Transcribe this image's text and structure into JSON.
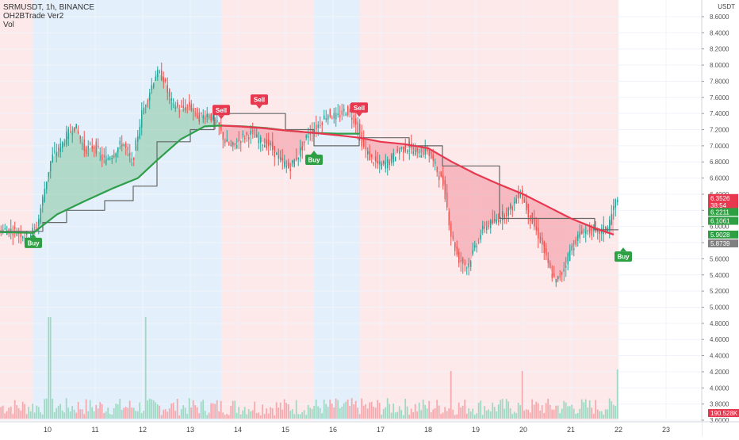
{
  "header": {
    "symbol_line": "SRMUSDT, 1h, BINANCE",
    "indicator": "OH2BTrade Ver2",
    "volume": "Vol"
  },
  "price_axis": {
    "currency": "USDT",
    "ticks": [
      "8.6000",
      "8.4000",
      "8.2000",
      "8.0000",
      "7.8000",
      "7.6000",
      "7.4000",
      "7.2000",
      "7.0000",
      "6.8000",
      "6.6000",
      "6.4000",
      "6.2000",
      "6.0000",
      "5.8000",
      "5.6000",
      "5.4000",
      "5.2000",
      "5.0000",
      "4.8000",
      "4.6000",
      "4.4000",
      "4.2000",
      "4.0000",
      "3.8000",
      "3.6000"
    ],
    "tick_values": [
      8.6,
      8.4,
      8.2,
      8.0,
      7.8,
      7.6,
      7.4,
      7.2,
      7.0,
      6.8,
      6.6,
      6.4,
      6.2,
      6.0,
      5.8,
      5.6,
      5.4,
      5.2,
      5.0,
      4.8,
      4.6,
      4.4,
      4.2,
      4.0,
      3.8,
      3.6
    ]
  },
  "time_axis": {
    "labels": [
      "10",
      "11",
      "12",
      "13",
      "14",
      "15",
      "16",
      "17",
      "18",
      "19",
      "20",
      "21",
      "22",
      "23"
    ],
    "days": [
      10,
      11,
      12,
      13,
      14,
      15,
      16,
      17,
      18,
      19,
      20,
      21,
      22,
      23
    ]
  },
  "price_badges": [
    {
      "label": "6.3526",
      "value": 6.3526,
      "color": "#e8384f"
    },
    {
      "label": "38:54",
      "value": 6.26,
      "color": "#e8384f"
    },
    {
      "label": "6.2211",
      "value": 6.18,
      "color": "#2ea043"
    },
    {
      "label": "6.1061",
      "value": 6.07,
      "color": "#2ea043"
    },
    {
      "label": "5.9028",
      "value": 5.9,
      "color": "#2ea043"
    },
    {
      "label": "5.8739",
      "value": 5.79,
      "color": "#808080"
    }
  ],
  "volume_badge": {
    "label": "190.528K",
    "color": "#e8384f"
  },
  "signals": [
    {
      "label": "Buy",
      "type": "buy",
      "x": 9.7,
      "y": 5.92
    },
    {
      "label": "Sell",
      "type": "sell",
      "x": 13.65,
      "y": 7.32
    },
    {
      "label": "Sell",
      "type": "sell",
      "x": 14.45,
      "y": 7.45
    },
    {
      "label": "Buy",
      "type": "buy",
      "x": 15.6,
      "y": 6.95
    },
    {
      "label": "Sell",
      "type": "sell",
      "x": 16.55,
      "y": 7.35
    },
    {
      "label": "Buy",
      "type": "buy",
      "x": 22.1,
      "y": 5.75
    }
  ],
  "chart_data": {
    "type": "candlestick",
    "title": "SRMUSDT, 1h, BINANCE",
    "xlabel": "",
    "ylabel": "",
    "x_range": [
      9.0,
      23.75
    ],
    "ylim": [
      3.5,
      8.8
    ],
    "background_zones": [
      {
        "from": 9.0,
        "to": 9.7,
        "trend": "bearish"
      },
      {
        "from": 9.7,
        "to": 13.65,
        "trend": "bullish"
      },
      {
        "from": 13.65,
        "to": 15.6,
        "trend": "bearish"
      },
      {
        "from": 15.6,
        "to": 16.55,
        "trend": "bullish"
      },
      {
        "from": 16.55,
        "to": 22.0,
        "trend": "bearish"
      }
    ],
    "close_path": [
      [
        9.0,
        5.96
      ],
      [
        9.3,
        5.95
      ],
      [
        9.6,
        5.88
      ],
      [
        9.8,
        6.0
      ],
      [
        9.95,
        6.45
      ],
      [
        10.1,
        6.85
      ],
      [
        10.3,
        7.0
      ],
      [
        10.45,
        7.15
      ],
      [
        10.6,
        7.25
      ],
      [
        10.8,
        6.95
      ],
      [
        11.0,
        7.0
      ],
      [
        11.2,
        6.82
      ],
      [
        11.4,
        6.9
      ],
      [
        11.6,
        7.05
      ],
      [
        11.8,
        6.78
      ],
      [
        12.0,
        7.4
      ],
      [
        12.15,
        7.65
      ],
      [
        12.3,
        7.9
      ],
      [
        12.45,
        7.85
      ],
      [
        12.6,
        7.55
      ],
      [
        12.8,
        7.45
      ],
      [
        13.0,
        7.5
      ],
      [
        13.2,
        7.35
      ],
      [
        13.4,
        7.4
      ],
      [
        13.6,
        7.25
      ],
      [
        13.75,
        7.05
      ],
      [
        13.9,
        6.98
      ],
      [
        14.1,
        7.1
      ],
      [
        14.3,
        7.15
      ],
      [
        14.5,
        7.05
      ],
      [
        14.7,
        7.0
      ],
      [
        14.9,
        6.82
      ],
      [
        15.1,
        6.72
      ],
      [
        15.3,
        6.9
      ],
      [
        15.5,
        7.15
      ],
      [
        15.7,
        7.25
      ],
      [
        15.9,
        7.4
      ],
      [
        16.1,
        7.35
      ],
      [
        16.3,
        7.45
      ],
      [
        16.5,
        7.3
      ],
      [
        16.65,
        7.0
      ],
      [
        16.8,
        6.85
      ],
      [
        17.0,
        6.75
      ],
      [
        17.2,
        6.8
      ],
      [
        17.4,
        6.95
      ],
      [
        17.6,
        6.98
      ],
      [
        17.8,
        6.9
      ],
      [
        18.0,
        6.95
      ],
      [
        18.2,
        6.7
      ],
      [
        18.35,
        6.5
      ],
      [
        18.5,
        5.9
      ],
      [
        18.65,
        5.6
      ],
      [
        18.85,
        5.5
      ],
      [
        19.0,
        5.75
      ],
      [
        19.2,
        6.0
      ],
      [
        19.4,
        6.05
      ],
      [
        19.6,
        6.15
      ],
      [
        19.8,
        6.25
      ],
      [
        19.95,
        6.45
      ],
      [
        20.1,
        6.2
      ],
      [
        20.25,
        6.0
      ],
      [
        20.4,
        5.8
      ],
      [
        20.55,
        5.5
      ],
      [
        20.7,
        5.3
      ],
      [
        20.85,
        5.45
      ],
      [
        21.0,
        5.7
      ],
      [
        21.2,
        5.9
      ],
      [
        21.4,
        5.95
      ],
      [
        21.6,
        5.92
      ],
      [
        21.8,
        6.0
      ],
      [
        21.95,
        6.3
      ]
    ],
    "overlays": [
      {
        "role": "fast moving average",
        "color": "#2e9e4a",
        "points": [
          [
            9.0,
            5.93
          ],
          [
            9.7,
            5.92
          ],
          [
            10.2,
            6.15
          ],
          [
            10.8,
            6.32
          ],
          [
            11.4,
            6.48
          ],
          [
            11.9,
            6.6
          ],
          [
            12.3,
            6.82
          ],
          [
            12.8,
            7.08
          ],
          [
            13.3,
            7.24
          ],
          [
            13.65,
            7.25
          ],
          [
            14.1,
            7.24
          ],
          [
            14.6,
            7.22
          ],
          [
            15.0,
            7.19
          ],
          [
            15.6,
            7.16
          ],
          [
            16.1,
            7.15
          ],
          [
            16.55,
            7.15
          ]
        ]
      },
      {
        "role": "slow moving average",
        "color": "#e8384f",
        "points": [
          [
            13.65,
            7.25
          ],
          [
            14.0,
            7.24
          ],
          [
            14.5,
            7.22
          ],
          [
            15.0,
            7.19
          ],
          [
            15.6,
            7.16
          ],
          [
            16.1,
            7.13
          ],
          [
            16.55,
            7.1
          ],
          [
            17.0,
            7.05
          ],
          [
            17.5,
            7.02
          ],
          [
            18.0,
            6.97
          ],
          [
            18.5,
            6.8
          ],
          [
            19.0,
            6.65
          ],
          [
            19.5,
            6.52
          ],
          [
            20.0,
            6.4
          ],
          [
            20.5,
            6.25
          ],
          [
            21.0,
            6.1
          ],
          [
            21.5,
            5.98
          ],
          [
            21.9,
            5.9
          ]
        ]
      },
      {
        "role": "step line",
        "color": "#666666",
        "points": [
          [
            9.0,
            5.94
          ],
          [
            9.7,
            5.94
          ],
          [
            9.9,
            5.94
          ],
          [
            9.9,
            6.05
          ],
          [
            10.4,
            6.05
          ],
          [
            10.4,
            6.2
          ],
          [
            11.2,
            6.2
          ],
          [
            11.2,
            6.32
          ],
          [
            11.8,
            6.32
          ],
          [
            11.8,
            6.5
          ],
          [
            12.3,
            6.5
          ],
          [
            12.3,
            7.05
          ],
          [
            13.0,
            7.05
          ],
          [
            13.0,
            7.2
          ],
          [
            13.5,
            7.2
          ],
          [
            13.5,
            7.4
          ],
          [
            15.0,
            7.4
          ],
          [
            15.0,
            7.2
          ],
          [
            15.6,
            7.2
          ],
          [
            15.6,
            7.0
          ],
          [
            16.55,
            7.0
          ],
          [
            16.55,
            7.1
          ],
          [
            17.6,
            7.1
          ],
          [
            17.6,
            7.0
          ],
          [
            18.3,
            7.0
          ],
          [
            18.3,
            6.75
          ],
          [
            19.5,
            6.75
          ],
          [
            19.5,
            6.1
          ],
          [
            20.5,
            6.1
          ],
          [
            20.5,
            6.1
          ],
          [
            21.5,
            6.1
          ],
          [
            21.5,
            5.96
          ],
          [
            22.0,
            5.96
          ]
        ]
      }
    ],
    "volume_spikes": [
      {
        "x": 10.02,
        "value": 4.0
      },
      {
        "x": 12.05,
        "value": 4.0
      },
      {
        "x": 18.45,
        "value": 1.5
      },
      {
        "x": 19.95,
        "value": 1.5
      },
      {
        "x": 21.95,
        "value": 1.7
      }
    ]
  }
}
